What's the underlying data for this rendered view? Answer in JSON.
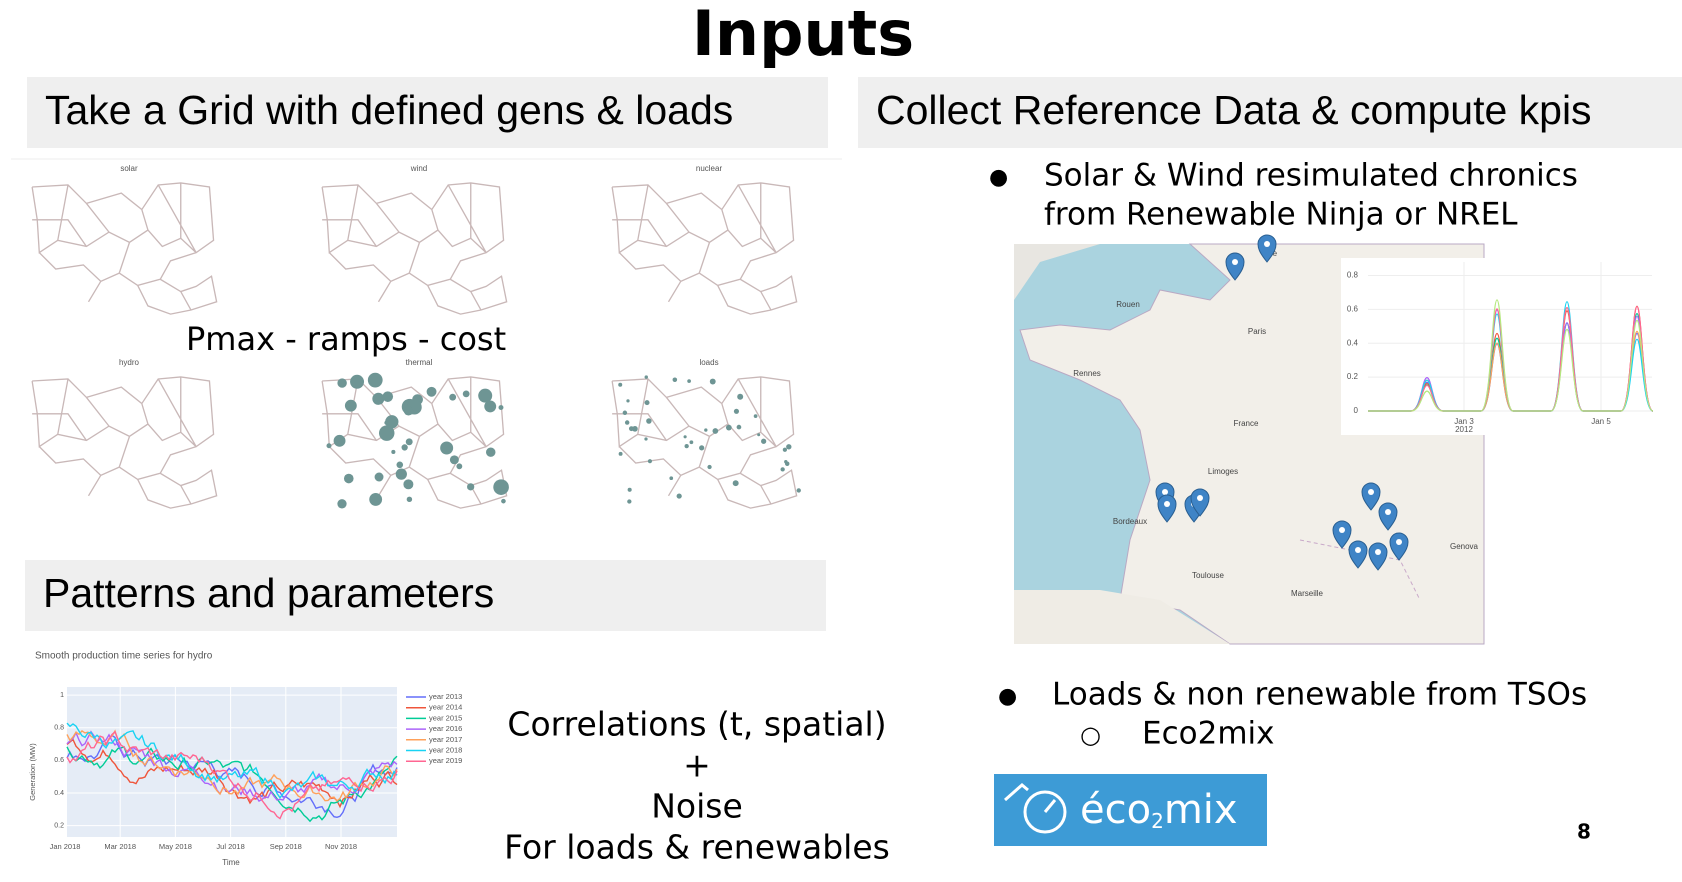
{
  "title": "Inputs",
  "left": {
    "header": "Take a Grid with defined gens & loads",
    "grid_maps": [
      "solar",
      "wind",
      "nuclear",
      "hydro",
      "thermal",
      "loads"
    ],
    "overlay": "Pmax - ramps - cost"
  },
  "patterns": {
    "header": "Patterns and parameters",
    "chart": {
      "title": "Smooth production time series for hydro",
      "y_label": "Generation (MW)",
      "x_label": "Time",
      "ylim": [
        0.13,
        1.05
      ],
      "yticks": [
        0.2,
        0.4,
        0.6,
        0.8,
        1
      ],
      "xticks": [
        "Jan 2018",
        "Mar 2018",
        "May 2018",
        "Jul 2018",
        "Sep 2018",
        "Nov 2018"
      ],
      "series": [
        {
          "name": "year 2013",
          "color": "#636efa"
        },
        {
          "name": "year 2014",
          "color": "#ef553b"
        },
        {
          "name": "year 2015",
          "color": "#00cc96"
        },
        {
          "name": "year 2016",
          "color": "#ab63fa"
        },
        {
          "name": "year 2017",
          "color": "#ffa15a"
        },
        {
          "name": "year 2018",
          "color": "#19d3f3"
        },
        {
          "name": "year 2019",
          "color": "#ff6692"
        }
      ]
    },
    "text_lines": [
      "Correlations (t, spatial)",
      "+",
      "Noise",
      "For loads & renewables"
    ]
  },
  "right": {
    "header": "Collect Reference Data & compute kpis",
    "bullet_1": [
      "Solar & Wind resimulated chronics",
      "from Renewable Ninja or NREL"
    ],
    "map_labels": [
      "Paris",
      "Rennes",
      "Bordeaux",
      "Toulouse",
      "Marseille",
      "Limoges",
      "France",
      "Rouen",
      "Lille",
      "Genova"
    ],
    "inset_chart": {
      "ylim": [
        0,
        0.88
      ],
      "yticks": [
        0,
        0.2,
        0.4,
        0.6,
        0.8
      ],
      "xticks": [
        [
          "Jan 3",
          "2012"
        ],
        [
          "Jan 5"
        ]
      ]
    },
    "bullet_2": "Loads & non renewable from TSOs",
    "sub_bullet": "Eco2mix",
    "logo": [
      "éco",
      "2",
      "mix"
    ]
  },
  "page_number": "8"
}
